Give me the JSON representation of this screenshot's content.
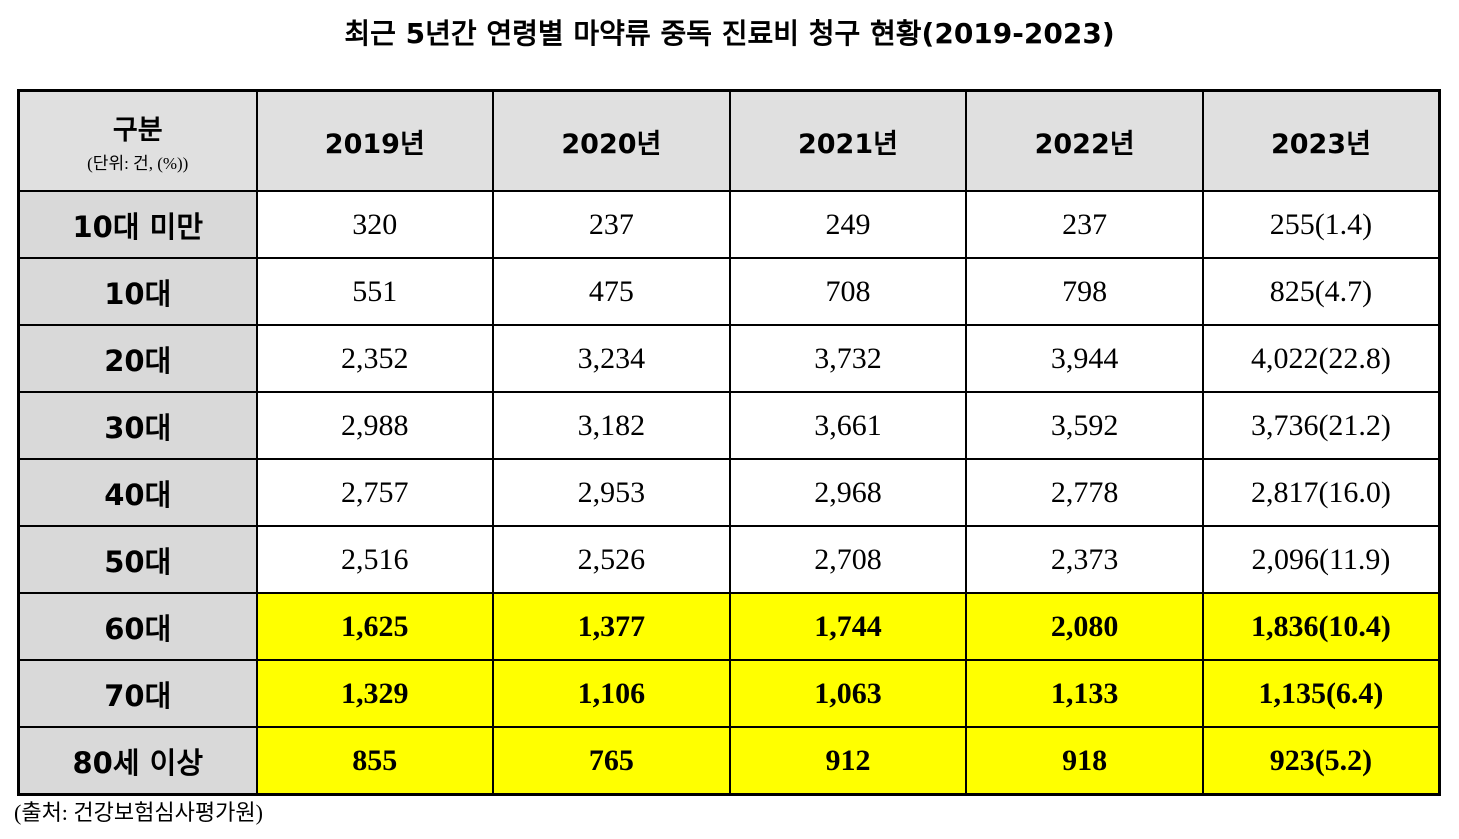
{
  "title": "최근 5년간 연령별 마약류 중독 진료비 청구 현황(2019-2023)",
  "table": {
    "header": {
      "label": "구분",
      "unit": "(단위: 건, (%))",
      "columns": [
        "2019년",
        "2020년",
        "2021년",
        "2022년",
        "2023년"
      ]
    },
    "rows": [
      {
        "label": "10대 미만",
        "cells": [
          "320",
          "237",
          "249",
          "237",
          "255(1.4)"
        ]
      },
      {
        "label": "10대",
        "cells": [
          "551",
          "475",
          "708",
          "798",
          "825(4.7)"
        ]
      },
      {
        "label": "20대",
        "cells": [
          "2,352",
          "3,234",
          "3,732",
          "3,944",
          "4,022(22.8)"
        ]
      },
      {
        "label": "30대",
        "cells": [
          "2,988",
          "3,182",
          "3,661",
          "3,592",
          "3,736(21.2)"
        ]
      },
      {
        "label": "40대",
        "cells": [
          "2,757",
          "2,953",
          "2,968",
          "2,778",
          "2,817(16.0)"
        ]
      },
      {
        "label": "50대",
        "cells": [
          "2,516",
          "2,526",
          "2,708",
          "2,373",
          "2,096(11.9)"
        ]
      },
      {
        "label": "60대",
        "cells": [
          "1,625",
          "1,377",
          "1,744",
          "2,080",
          "1,836(10.4)"
        ],
        "fill": "#ffff00"
      },
      {
        "label": "70대",
        "cells": [
          "1,329",
          "1,106",
          "1,063",
          "1,133",
          "1,135(6.4)"
        ],
        "fill": "#ffff00"
      },
      {
        "label": "80세 이상",
        "cells": [
          "855",
          "765",
          "912",
          "918",
          "923(5.2)"
        ],
        "fill": "#ffff00"
      }
    ]
  },
  "source": "(출처: 건강보험심사평가원)"
}
